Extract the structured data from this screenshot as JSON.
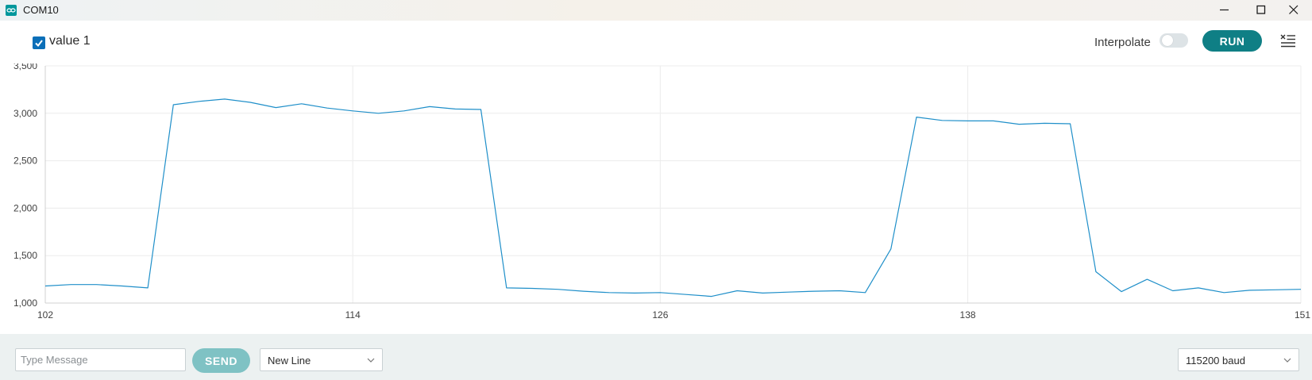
{
  "window": {
    "title": "COM10",
    "icon": "infinity-icon",
    "controls": [
      "minimize-icon",
      "maximize-icon",
      "close-icon"
    ]
  },
  "toolbar": {
    "series_label": "value 1",
    "series_checked": true,
    "interpolate_label": "Interpolate",
    "interpolate_on": false,
    "run_label": "RUN",
    "clear_icon": "clear-list-icon"
  },
  "chart_data": {
    "type": "line",
    "title": "",
    "xlabel": "",
    "ylabel": "",
    "xlim": [
      102,
      151
    ],
    "ylim": [
      1000,
      3500
    ],
    "x_ticks": [
      "102",
      "114",
      "126",
      "138",
      "151"
    ],
    "y_ticks": [
      "1,000",
      "1,500",
      "2,000",
      "2,500",
      "3,000",
      "3,500"
    ],
    "grid": true,
    "series": [
      {
        "name": "value 1",
        "color": "#1f8fc9",
        "x": [
          102,
          103,
          104,
          105,
          106,
          107,
          108,
          109,
          110,
          111,
          112,
          113,
          114,
          115,
          116,
          117,
          118,
          119,
          120,
          121,
          122,
          123,
          124,
          125,
          126,
          127,
          128,
          129,
          130,
          131,
          132,
          133,
          134,
          135,
          136,
          137,
          138,
          139,
          140,
          141,
          142,
          143,
          144,
          145,
          146,
          147,
          148,
          149,
          150,
          151
        ],
        "y": [
          1180,
          1195,
          1195,
          1180,
          1160,
          3090,
          3125,
          3150,
          3115,
          3060,
          3100,
          3055,
          3025,
          3000,
          3025,
          3070,
          3045,
          3040,
          1160,
          1155,
          1145,
          1125,
          1110,
          1105,
          1110,
          1090,
          1070,
          1130,
          1105,
          1115,
          1125,
          1130,
          1110,
          1570,
          2960,
          2925,
          2920,
          2920,
          2885,
          2895,
          2890,
          1330,
          1120,
          1250,
          1130,
          1160,
          1110,
          1135,
          1140,
          1145
        ]
      }
    ]
  },
  "bottombar": {
    "message_placeholder": "Type Message",
    "send_label": "SEND",
    "line_ending": "New Line",
    "baud_rate": "115200 baud"
  }
}
